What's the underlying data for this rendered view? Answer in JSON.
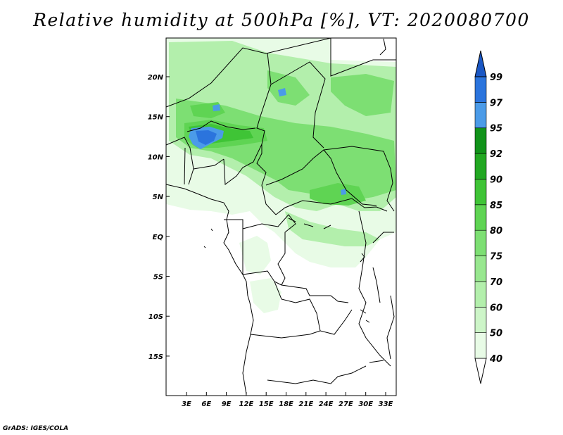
{
  "title": "Relative humidity at 500hPa [%], VT: 2020080700",
  "credit": "GrADS: IGES/COLA",
  "map": {
    "lat_labels": [
      "20N",
      "15N",
      "10N",
      "5N",
      "EQ",
      "5S",
      "10S",
      "15S"
    ],
    "lon_labels": [
      "3E",
      "6E",
      "9E",
      "12E",
      "15E",
      "18E",
      "21E",
      "24E",
      "27E",
      "30E",
      "33E"
    ]
  },
  "colorbar": {
    "levels": [
      "40",
      "50",
      "60",
      "70",
      "75",
      "80",
      "85",
      "90",
      "92",
      "95",
      "97",
      "99"
    ],
    "colors": [
      "#ffffff",
      "#e8fbe6",
      "#cdf5c8",
      "#b3efac",
      "#98e78f",
      "#7ddf73",
      "#5fd453",
      "#3fc436",
      "#22a822",
      "#11931a",
      "#4b9be8",
      "#2b74dd",
      "#1a57c4"
    ]
  }
}
